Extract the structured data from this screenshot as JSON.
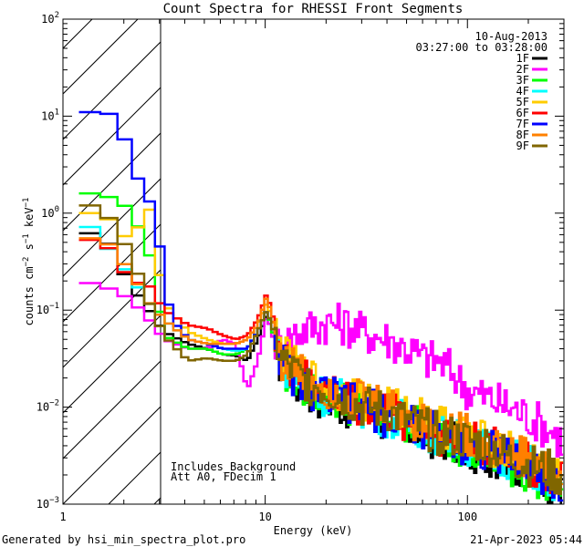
{
  "chart_data": {
    "type": "line",
    "title": "Count Spectra for RHESSI Front Segments",
    "xlabel": "Energy (keV)",
    "ylabel": "counts cm",
    "ylabel_sup1": "−2",
    "ylabel_mid": " s",
    "ylabel_sup2": "−1",
    "ylabel_end": " keV",
    "ylabel_sup3": "−1",
    "xscale": "log",
    "yscale": "log",
    "xlim": [
      1,
      300
    ],
    "ylim": [
      0.001,
      100
    ],
    "x_ticks": [
      {
        "value": 1,
        "label": "1"
      },
      {
        "value": 10,
        "label": "10"
      },
      {
        "value": 100,
        "label": "100"
      }
    ],
    "y_ticks": [
      {
        "value": 0.001,
        "base": "10",
        "exp": "−3"
      },
      {
        "value": 0.01,
        "base": "10",
        "exp": "−2"
      },
      {
        "value": 0.1,
        "base": "10",
        "exp": "−1"
      },
      {
        "value": 1,
        "base": "10",
        "exp": "0"
      },
      {
        "value": 10,
        "base": "10",
        "exp": "1"
      },
      {
        "value": 100,
        "base": "10",
        "exp": "2"
      }
    ],
    "hatched_region": [
      1,
      3
    ],
    "date": "10-Aug-2013",
    "time_range": "03:27:00 to 03:28:00",
    "annotation_line1": "Includes_Background",
    "annotation_line2": "Att A0, FDecim 1",
    "legend_position": "top-right",
    "series": [
      {
        "name": "1F",
        "color": "#000000",
        "values": [
          [
            1.2,
            0.62
          ],
          [
            1.5,
            0.52
          ],
          [
            2,
            0.18
          ],
          [
            2.5,
            0.1
          ],
          [
            3,
            0.06
          ],
          [
            4,
            0.045
          ],
          [
            5,
            0.04
          ],
          [
            6,
            0.035
          ],
          [
            7,
            0.034
          ],
          [
            8,
            0.03
          ],
          [
            9,
            0.05
          ],
          [
            10,
            0.09
          ],
          [
            10.8,
            0.05
          ],
          [
            12,
            0.025
          ],
          [
            14,
            0.018
          ],
          [
            16,
            0.014
          ],
          [
            20,
            0.012
          ],
          [
            25,
            0.01
          ],
          [
            30,
            0.009
          ],
          [
            40,
            0.007
          ],
          [
            50,
            0.0065
          ],
          [
            60,
            0.005
          ],
          [
            80,
            0.0045
          ],
          [
            100,
            0.0035
          ],
          [
            130,
            0.0032
          ],
          [
            160,
            0.0028
          ],
          [
            200,
            0.0022
          ],
          [
            250,
            0.0015
          ],
          [
            290,
            0.0011
          ]
        ]
      },
      {
        "name": "2F",
        "color": "#ff00ff",
        "values": [
          [
            1.2,
            0.19
          ],
          [
            1.5,
            0.17
          ],
          [
            2,
            0.13
          ],
          [
            2.5,
            0.08
          ],
          [
            3,
            0.05
          ],
          [
            4,
            0.04
          ],
          [
            5,
            0.04
          ],
          [
            6,
            0.05
          ],
          [
            7,
            0.045
          ],
          [
            8,
            0.015
          ],
          [
            9,
            0.03
          ],
          [
            10,
            0.09
          ],
          [
            10.8,
            0.05
          ],
          [
            12,
            0.04
          ],
          [
            14,
            0.06
          ],
          [
            16,
            0.065
          ],
          [
            20,
            0.075
          ],
          [
            25,
            0.07
          ],
          [
            30,
            0.06
          ],
          [
            40,
            0.05
          ],
          [
            50,
            0.04
          ],
          [
            60,
            0.032
          ],
          [
            70,
            0.03
          ],
          [
            80,
            0.025
          ],
          [
            100,
            0.015
          ],
          [
            130,
            0.012
          ],
          [
            160,
            0.01
          ],
          [
            200,
            0.008
          ],
          [
            250,
            0.006
          ],
          [
            290,
            0.0045
          ]
        ]
      },
      {
        "name": "3F",
        "color": "#00ff00",
        "values": [
          [
            1.2,
            1.6
          ],
          [
            1.5,
            1.5
          ],
          [
            2,
            1.1
          ],
          [
            2.5,
            0.4
          ],
          [
            3,
            0.055
          ],
          [
            4,
            0.04
          ],
          [
            5,
            0.04
          ],
          [
            6,
            0.035
          ],
          [
            7,
            0.035
          ],
          [
            8,
            0.04
          ],
          [
            9,
            0.06
          ],
          [
            10,
            0.1
          ],
          [
            10.8,
            0.055
          ],
          [
            12,
            0.025
          ],
          [
            14,
            0.02
          ],
          [
            16,
            0.016
          ],
          [
            20,
            0.013
          ],
          [
            25,
            0.011
          ],
          [
            30,
            0.01
          ],
          [
            40,
            0.008
          ],
          [
            50,
            0.007
          ],
          [
            60,
            0.006
          ],
          [
            80,
            0.005
          ],
          [
            100,
            0.0035
          ],
          [
            130,
            0.003
          ],
          [
            160,
            0.0025
          ],
          [
            200,
            0.002
          ],
          [
            250,
            0.0018
          ],
          [
            290,
            0.0016
          ]
        ]
      },
      {
        "name": "4F",
        "color": "#00ffff",
        "values": [
          [
            1.2,
            0.72
          ],
          [
            1.5,
            0.45
          ],
          [
            2,
            0.22
          ],
          [
            2.5,
            0.12
          ],
          [
            3,
            0.08
          ],
          [
            4,
            0.05
          ],
          [
            5,
            0.045
          ],
          [
            6,
            0.04
          ],
          [
            7,
            0.038
          ],
          [
            8,
            0.04
          ],
          [
            9,
            0.06
          ],
          [
            10,
            0.1
          ],
          [
            10.8,
            0.06
          ],
          [
            12,
            0.03
          ],
          [
            14,
            0.02
          ],
          [
            16,
            0.016
          ],
          [
            20,
            0.013
          ],
          [
            25,
            0.012
          ],
          [
            30,
            0.01
          ],
          [
            40,
            0.008
          ],
          [
            50,
            0.007
          ],
          [
            60,
            0.006
          ],
          [
            80,
            0.005
          ],
          [
            100,
            0.004
          ],
          [
            130,
            0.0035
          ],
          [
            160,
            0.003
          ],
          [
            200,
            0.0025
          ],
          [
            250,
            0.0018
          ],
          [
            290,
            0.0015
          ]
        ]
      },
      {
        "name": "5F",
        "color": "#ffcc00",
        "values": [
          [
            1.2,
            1.0
          ],
          [
            1.5,
            0.9
          ],
          [
            2,
            0.5
          ],
          [
            2.5,
            1.2
          ],
          [
            3,
            0.12
          ],
          [
            4,
            0.06
          ],
          [
            5,
            0.05
          ],
          [
            6,
            0.045
          ],
          [
            7,
            0.045
          ],
          [
            8,
            0.05
          ],
          [
            9,
            0.07
          ],
          [
            10,
            0.12
          ],
          [
            10.8,
            0.07
          ],
          [
            12,
            0.035
          ],
          [
            14,
            0.025
          ],
          [
            16,
            0.02
          ],
          [
            20,
            0.016
          ],
          [
            25,
            0.014
          ],
          [
            30,
            0.012
          ],
          [
            40,
            0.01
          ],
          [
            50,
            0.009
          ],
          [
            60,
            0.008
          ],
          [
            80,
            0.006
          ],
          [
            100,
            0.005
          ],
          [
            130,
            0.004
          ],
          [
            160,
            0.0035
          ],
          [
            200,
            0.003
          ],
          [
            250,
            0.0025
          ],
          [
            290,
            0.002
          ]
        ]
      },
      {
        "name": "6F",
        "color": "#ff0000",
        "values": [
          [
            1.2,
            0.53
          ],
          [
            1.5,
            0.46
          ],
          [
            2,
            0.2
          ],
          [
            2.5,
            0.18
          ],
          [
            3,
            0.1
          ],
          [
            4,
            0.07
          ],
          [
            5,
            0.065
          ],
          [
            6,
            0.055
          ],
          [
            7,
            0.05
          ],
          [
            8,
            0.055
          ],
          [
            9,
            0.08
          ],
          [
            10,
            0.15
          ],
          [
            10.8,
            0.08
          ],
          [
            12,
            0.03
          ],
          [
            14,
            0.022
          ],
          [
            16,
            0.018
          ],
          [
            20,
            0.015
          ],
          [
            25,
            0.012
          ],
          [
            30,
            0.01
          ],
          [
            40,
            0.009
          ],
          [
            50,
            0.007
          ],
          [
            60,
            0.006
          ],
          [
            80,
            0.005
          ],
          [
            100,
            0.0045
          ],
          [
            130,
            0.004
          ],
          [
            160,
            0.0035
          ],
          [
            200,
            0.0025
          ],
          [
            250,
            0.002
          ],
          [
            290,
            0.0016
          ]
        ]
      },
      {
        "name": "7F",
        "color": "#0000ff",
        "values": [
          [
            1.2,
            11
          ],
          [
            1.5,
            11
          ],
          [
            1.7,
            8.5
          ],
          [
            2,
            4.2
          ],
          [
            2.2,
            2.2
          ],
          [
            2.5,
            1.4
          ],
          [
            2.8,
            0.6
          ],
          [
            3,
            0.2
          ],
          [
            3.3,
            0.08
          ],
          [
            4,
            0.05
          ],
          [
            5,
            0.045
          ],
          [
            6,
            0.04
          ],
          [
            7,
            0.04
          ],
          [
            8,
            0.04
          ],
          [
            9,
            0.06
          ],
          [
            10,
            0.1
          ],
          [
            10.8,
            0.06
          ],
          [
            12,
            0.03
          ],
          [
            14,
            0.02
          ],
          [
            16,
            0.016
          ],
          [
            20,
            0.013
          ],
          [
            25,
            0.011
          ],
          [
            30,
            0.01
          ],
          [
            40,
            0.008
          ],
          [
            50,
            0.007
          ],
          [
            60,
            0.006
          ],
          [
            80,
            0.005
          ],
          [
            100,
            0.004
          ],
          [
            130,
            0.0035
          ],
          [
            160,
            0.003
          ],
          [
            200,
            0.0025
          ],
          [
            250,
            0.0018
          ],
          [
            290,
            0.0015
          ]
        ]
      },
      {
        "name": "8F",
        "color": "#ff8000",
        "values": [
          [
            1.2,
            0.55
          ],
          [
            1.5,
            0.5
          ],
          [
            2,
            0.25
          ],
          [
            2.5,
            0.12
          ],
          [
            3,
            0.08
          ],
          [
            4,
            0.05
          ],
          [
            5,
            0.045
          ],
          [
            6,
            0.045
          ],
          [
            7,
            0.045
          ],
          [
            8,
            0.05
          ],
          [
            9,
            0.07
          ],
          [
            10,
            0.14
          ],
          [
            10.8,
            0.07
          ],
          [
            12,
            0.03
          ],
          [
            14,
            0.025
          ],
          [
            16,
            0.02
          ],
          [
            20,
            0.016
          ],
          [
            25,
            0.014
          ],
          [
            30,
            0.012
          ],
          [
            40,
            0.01
          ],
          [
            50,
            0.008
          ],
          [
            60,
            0.007
          ],
          [
            80,
            0.006
          ],
          [
            100,
            0.005
          ],
          [
            130,
            0.004
          ],
          [
            160,
            0.0035
          ],
          [
            200,
            0.003
          ],
          [
            250,
            0.0022
          ],
          [
            290,
            0.0018
          ]
        ]
      },
      {
        "name": "9F",
        "color": "#806600",
        "values": [
          [
            1.2,
            1.2
          ],
          [
            1.5,
            0.95
          ],
          [
            2,
            0.38
          ],
          [
            2.5,
            0.12
          ],
          [
            3,
            0.055
          ],
          [
            4,
            0.03
          ],
          [
            5,
            0.032
          ],
          [
            6,
            0.03
          ],
          [
            7,
            0.03
          ],
          [
            8,
            0.035
          ],
          [
            9,
            0.06
          ],
          [
            10,
            0.1
          ],
          [
            10.8,
            0.06
          ],
          [
            12,
            0.03
          ],
          [
            14,
            0.022
          ],
          [
            16,
            0.018
          ],
          [
            20,
            0.015
          ],
          [
            25,
            0.012
          ],
          [
            30,
            0.01
          ],
          [
            40,
            0.009
          ],
          [
            50,
            0.007
          ],
          [
            60,
            0.006
          ],
          [
            80,
            0.005
          ],
          [
            100,
            0.0045
          ],
          [
            130,
            0.004
          ],
          [
            160,
            0.003
          ],
          [
            200,
            0.0025
          ],
          [
            250,
            0.0022
          ],
          [
            290,
            0.0018
          ]
        ]
      }
    ]
  },
  "footer": {
    "left": "Generated by hsi_min_spectra_plot.pro",
    "right": "21-Apr-2023 05:44"
  }
}
